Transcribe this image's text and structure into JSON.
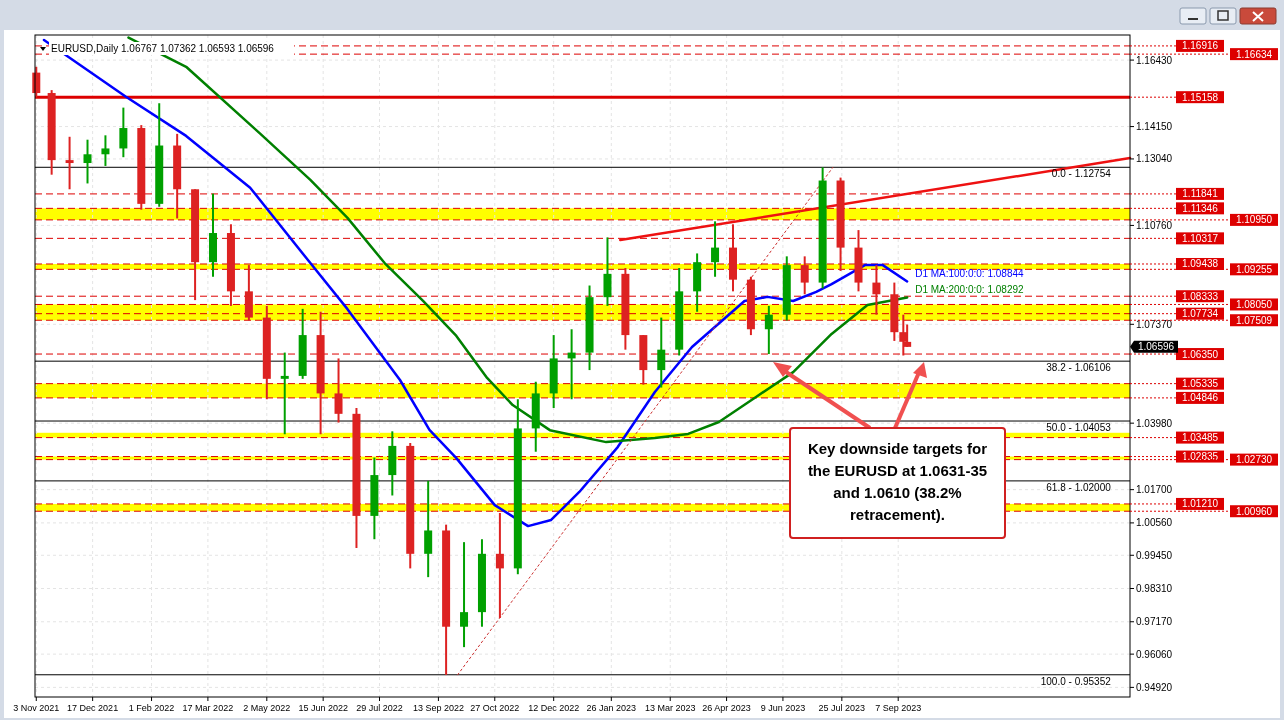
{
  "chart_data": {
    "type": "candlestick",
    "title": "EURUSD,Daily  1.06767 1.07362 1.06593 1.06596",
    "xlim": [
      "2021-11-02",
      "2024-03-06"
    ],
    "xticks": [
      {
        "value": "2021-11-03",
        "label": "3 Nov 2021"
      },
      {
        "value": "2021-12-17",
        "label": "17 Dec 2021"
      },
      {
        "value": "2022-02-01",
        "label": "1 Feb 2022"
      },
      {
        "value": "2022-03-17",
        "label": "17 Mar 2022"
      },
      {
        "value": "2022-05-02",
        "label": "2 May 2022"
      },
      {
        "value": "2022-06-15",
        "label": "15 Jun 2022"
      },
      {
        "value": "2022-07-29",
        "label": "29 Jul 2022"
      },
      {
        "value": "2022-09-13",
        "label": "13 Sep 2022"
      },
      {
        "value": "2022-10-27",
        "label": "27 Oct 2022"
      },
      {
        "value": "2022-12-12",
        "label": "12 Dec 2022"
      },
      {
        "value": "2023-01-26",
        "label": "26 Jan 2023"
      },
      {
        "value": "2023-03-13",
        "label": "13 Mar 2023"
      },
      {
        "value": "2023-04-26",
        "label": "26 Apr 2023"
      },
      {
        "value": "2023-06-09",
        "label": "9 Jun 2023"
      },
      {
        "value": "2023-07-25",
        "label": "25 Jul 2023"
      },
      {
        "value": "2023-09-07",
        "label": "7 Sep 2023"
      }
    ],
    "ylim": [
      0.9459,
      1.1729
    ],
    "yticks": [
      {
        "value": 1.1643,
        "label": "1.16430"
      },
      {
        "value": 1.1415,
        "label": "1.14150"
      },
      {
        "value": 1.1304,
        "label": "1.13040"
      },
      {
        "value": 1.1076,
        "label": "1.10760"
      },
      {
        "value": 1.0737,
        "label": "1.07370"
      },
      {
        "value": 1.0398,
        "label": "1.03980"
      },
      {
        "value": 1.017,
        "label": "1.01700"
      },
      {
        "value": 1.0056,
        "label": "1.00560"
      },
      {
        "value": 0.9945,
        "label": "0.99450"
      },
      {
        "value": 0.9831,
        "label": "0.98310"
      },
      {
        "value": 0.9717,
        "label": "0.97170"
      },
      {
        "value": 0.9606,
        "label": "0.96060"
      },
      {
        "value": 0.9492,
        "label": "0.94920"
      }
    ],
    "grid": true,
    "x": [
      "2021-11-03",
      "2021-11-15",
      "2021-11-29",
      "2021-12-13",
      "2021-12-27",
      "2022-01-10",
      "2022-01-24",
      "2022-02-07",
      "2022-02-21",
      "2022-03-07",
      "2022-03-21",
      "2022-04-04",
      "2022-04-18",
      "2022-05-02",
      "2022-05-16",
      "2022-05-30",
      "2022-06-13",
      "2022-06-27",
      "2022-07-11",
      "2022-07-25",
      "2022-08-08",
      "2022-08-22",
      "2022-09-05",
      "2022-09-19",
      "2022-10-03",
      "2022-10-17",
      "2022-10-31",
      "2022-11-14",
      "2022-11-28",
      "2022-12-12",
      "2022-12-26",
      "2023-01-09",
      "2023-01-23",
      "2023-02-06",
      "2023-02-20",
      "2023-03-06",
      "2023-03-20",
      "2023-04-03",
      "2023-04-17",
      "2023-05-01",
      "2023-05-15",
      "2023-05-29",
      "2023-06-12",
      "2023-06-26",
      "2023-07-10",
      "2023-07-24",
      "2023-08-07",
      "2023-08-21",
      "2023-09-04",
      "2023-09-11",
      "2023-09-14"
    ],
    "ohlc": [
      [
        1.16,
        1.162,
        1.1515,
        1.153
      ],
      [
        1.153,
        1.154,
        1.125,
        1.13
      ],
      [
        1.13,
        1.138,
        1.12,
        1.129
      ],
      [
        1.129,
        1.137,
        1.122,
        1.132
      ],
      [
        1.132,
        1.1385,
        1.128,
        1.134
      ],
      [
        1.134,
        1.148,
        1.131,
        1.141
      ],
      [
        1.141,
        1.142,
        1.113,
        1.115
      ],
      [
        1.115,
        1.1495,
        1.114,
        1.135
      ],
      [
        1.135,
        1.139,
        1.11,
        1.12
      ],
      [
        1.12,
        1.12,
        1.082,
        1.095
      ],
      [
        1.095,
        1.1185,
        1.09,
        1.105
      ],
      [
        1.105,
        1.108,
        1.08,
        1.085
      ],
      [
        1.085,
        1.094,
        1.075,
        1.076
      ],
      [
        1.076,
        1.08,
        1.048,
        1.055
      ],
      [
        1.055,
        1.064,
        1.036,
        1.056
      ],
      [
        1.056,
        1.079,
        1.055,
        1.07
      ],
      [
        1.07,
        1.078,
        1.036,
        1.05
      ],
      [
        1.05,
        1.062,
        1.04,
        1.043
      ],
      [
        1.043,
        1.045,
        0.997,
        1.008
      ],
      [
        1.008,
        1.028,
        1.0,
        1.022
      ],
      [
        1.022,
        1.037,
        1.015,
        1.032
      ],
      [
        1.032,
        1.033,
        0.99,
        0.995
      ],
      [
        0.995,
        1.02,
        0.987,
        1.003
      ],
      [
        1.003,
        1.005,
        0.9535,
        0.97
      ],
      [
        0.97,
        0.999,
        0.963,
        0.975
      ],
      [
        0.975,
        1.0,
        0.97,
        0.995
      ],
      [
        0.995,
        1.009,
        0.973,
        0.99
      ],
      [
        0.99,
        1.048,
        0.988,
        1.038
      ],
      [
        1.038,
        1.054,
        1.03,
        1.05
      ],
      [
        1.05,
        1.07,
        1.045,
        1.062
      ],
      [
        1.062,
        1.072,
        1.048,
        1.064
      ],
      [
        1.064,
        1.087,
        1.058,
        1.083
      ],
      [
        1.083,
        1.1035,
        1.08,
        1.091
      ],
      [
        1.091,
        1.093,
        1.065,
        1.07
      ],
      [
        1.07,
        1.07,
        1.053,
        1.058
      ],
      [
        1.058,
        1.076,
        1.052,
        1.065
      ],
      [
        1.065,
        1.093,
        1.063,
        1.085
      ],
      [
        1.085,
        1.098,
        1.078,
        1.095
      ],
      [
        1.095,
        1.109,
        1.09,
        1.1
      ],
      [
        1.1,
        1.108,
        1.085,
        1.089
      ],
      [
        1.089,
        1.09,
        1.07,
        1.072
      ],
      [
        1.072,
        1.08,
        1.0635,
        1.077
      ],
      [
        1.077,
        1.097,
        1.075,
        1.094
      ],
      [
        1.094,
        1.097,
        1.084,
        1.088
      ],
      [
        1.088,
        1.1275,
        1.086,
        1.123
      ],
      [
        1.123,
        1.124,
        1.092,
        1.1
      ],
      [
        1.1,
        1.106,
        1.085,
        1.088
      ],
      [
        1.088,
        1.094,
        1.077,
        1.084
      ],
      [
        1.084,
        1.088,
        1.068,
        1.071
      ],
      [
        1.071,
        1.077,
        1.063,
        1.0677
      ],
      [
        1.06767,
        1.07362,
        1.06593,
        1.06596
      ]
    ],
    "series": [
      {
        "name": "D1 MA:100:0:0: 1.08844",
        "color": "#0000ff",
        "type": "line",
        "x": [
          "2021-11-09",
          "2022-01-12",
          "2022-02-28",
          "2022-04-19",
          "2022-06-05",
          "2022-07-04",
          "2022-08-14",
          "2022-09-06",
          "2022-09-27",
          "2022-10-27",
          "2022-11-22",
          "2022-12-10",
          "2023-01-01",
          "2023-01-31",
          "2023-03-01",
          "2023-03-30",
          "2023-05-10",
          "2023-05-28",
          "2023-06-17",
          "2023-07-05",
          "2023-07-17",
          "2023-08-12",
          "2023-08-26",
          "2023-09-14"
        ],
        "values": [
          1.1712,
          1.1517,
          1.1383,
          1.1205,
          1.0947,
          1.0789,
          1.0546,
          1.0375,
          1.0278,
          1.0117,
          1.0045,
          1.0066,
          1.0162,
          1.0316,
          1.0505,
          1.0659,
          1.0817,
          1.0831,
          1.0817,
          1.0848,
          1.0875,
          1.094,
          1.094,
          1.0884
        ]
      },
      {
        "name": "D1 MA:200:0:0: 1.08292",
        "color": "#008000",
        "type": "line",
        "x": [
          "2022-01-14",
          "2022-02-28",
          "2022-04-27",
          "2022-06-05",
          "2022-07-04",
          "2022-08-02",
          "2022-09-01",
          "2022-09-27",
          "2022-10-21",
          "2022-11-10",
          "2022-12-09",
          "2023-01-22",
          "2023-03-01",
          "2023-03-27",
          "2023-04-20",
          "2023-05-19",
          "2023-06-17",
          "2023-07-17",
          "2023-08-14",
          "2023-09-14"
        ],
        "values": [
          1.172,
          1.162,
          1.139,
          1.1232,
          1.1102,
          1.0947,
          1.0817,
          1.0697,
          1.0553,
          1.046,
          1.0374,
          1.0333,
          1.0347,
          1.0361,
          1.0402,
          1.0488,
          1.0573,
          1.0704,
          1.0803,
          1.0829
        ]
      },
      {
        "color": "#ee1111",
        "type": "line",
        "x": [
          "2023-02-02",
          "2024-03-06"
        ],
        "values": [
          1.1026,
          1.1307
        ]
      },
      {
        "color": "#cc3333",
        "type": "line",
        "line_style": "dotted",
        "x": [
          "2022-09-28",
          "2023-07-18"
        ],
        "values": [
          0.9535,
          1.1275
        ]
      }
    ],
    "bands": [
      {
        "axis": "y",
        "from": 1.1095,
        "to": 1.11346,
        "color": "#ffff00"
      },
      {
        "axis": "y",
        "from": 1.09255,
        "to": 1.09438,
        "color": "#ffff00"
      },
      {
        "axis": "y",
        "from": 1.07509,
        "to": 1.0805,
        "color": "#ffff00"
      },
      {
        "axis": "y",
        "from": 1.04846,
        "to": 1.05335,
        "color": "#ffff00"
      },
      {
        "axis": "y",
        "from": 1.03485,
        "to": 1.0365,
        "color": "#ffff00"
      },
      {
        "axis": "y",
        "from": 1.0273,
        "to": 1.02835,
        "color": "#ffff00"
      },
      {
        "axis": "y",
        "from": 1.0096,
        "to": 1.0121,
        "color": "#ffff00"
      }
    ],
    "ref_lines": [
      {
        "axis": "y",
        "value": 1.16916,
        "label": "1.16916",
        "color": "#dd0000",
        "line_style": "dashed"
      },
      {
        "axis": "y",
        "value": 1.16634,
        "label": "1.16634",
        "color": "#dd0000",
        "line_style": "dashed"
      },
      {
        "axis": "y",
        "value": 1.15158,
        "label": "1.15158",
        "color": "#dd0000",
        "line_style": "solid"
      },
      {
        "axis": "y",
        "value": 1.11841,
        "label": "1.11841",
        "color": "#dd0000",
        "line_style": "dashed"
      },
      {
        "axis": "y",
        "value": 1.11346,
        "label": "1.11346",
        "color": "#dd0000",
        "line_style": "dashed"
      },
      {
        "axis": "y",
        "value": 1.1095,
        "label": "1.10950",
        "color": "#dd0000",
        "line_style": "dashed"
      },
      {
        "axis": "y",
        "value": 1.10317,
        "label": "1.10317",
        "color": "#dd0000",
        "line_style": "dashed"
      },
      {
        "axis": "y",
        "value": 1.09438,
        "label": "1.09438",
        "color": "#dd0000",
        "line_style": "dashed"
      },
      {
        "axis": "y",
        "value": 1.09255,
        "label": "1.09255",
        "color": "#dd0000",
        "line_style": "dashed"
      },
      {
        "axis": "y",
        "value": 1.08333,
        "label": "1.08333",
        "color": "#dd0000",
        "line_style": "dashed"
      },
      {
        "axis": "y",
        "value": 1.0805,
        "label": "1.08050",
        "color": "#dd0000",
        "line_style": "dashed"
      },
      {
        "axis": "y",
        "value": 1.07734,
        "label": "1.07734",
        "color": "#dd0000",
        "line_style": "dashed"
      },
      {
        "axis": "y",
        "value": 1.07509,
        "label": "1.07509",
        "color": "#dd0000",
        "line_style": "dashed"
      },
      {
        "axis": "y",
        "value": 1.0635,
        "label": "1.06350",
        "color": "#dd0000",
        "line_style": "dashed"
      },
      {
        "axis": "y",
        "value": 1.05335,
        "label": "1.05335",
        "color": "#dd0000",
        "line_style": "dashed"
      },
      {
        "axis": "y",
        "value": 1.04846,
        "label": "1.04846",
        "color": "#dd0000",
        "line_style": "dashed"
      },
      {
        "axis": "y",
        "value": 1.03485,
        "label": "1.03485",
        "color": "#dd0000",
        "line_style": "dashed"
      },
      {
        "axis": "y",
        "value": 1.02835,
        "label": "1.02835",
        "color": "#dd0000",
        "line_style": "dashed"
      },
      {
        "axis": "y",
        "value": 1.0273,
        "label": "1.02730",
        "color": "#dd0000",
        "line_style": "dashed"
      },
      {
        "axis": "y",
        "value": 1.0121,
        "label": "1.01210",
        "color": "#dd0000",
        "line_style": "dashed"
      },
      {
        "axis": "y",
        "value": 1.0096,
        "label": "1.00960",
        "color": "#dd0000",
        "line_style": "dashed"
      },
      {
        "axis": "y",
        "value": 1.12754,
        "color": "#000000",
        "line_style": "solid"
      },
      {
        "axis": "y",
        "value": 1.06106,
        "color": "#000000",
        "line_style": "solid"
      },
      {
        "axis": "y",
        "value": 1.04053,
        "color": "#000000",
        "line_style": "solid"
      },
      {
        "axis": "y",
        "value": 1.02,
        "color": "#000000",
        "line_style": "solid"
      },
      {
        "axis": "y",
        "value": 0.95352,
        "color": "#000000",
        "line_style": "solid"
      }
    ],
    "annotations": [
      "Key downside targets for the EURUSD at 1.0631-35 and 1.0610 (38.2% retracement).",
      "1.06596",
      {
        "text": "0.0 - 1.12754",
        "x": "2024-02-20",
        "y": 1.12754
      },
      {
        "text": "38.2 - 1.06106",
        "x": "2024-02-20",
        "y": 1.06106
      },
      {
        "text": "50.0 - 1.04053",
        "x": "2024-02-20",
        "y": 1.04053
      },
      {
        "text": "61.8 - 1.02000",
        "x": "2024-02-20",
        "y": 1.02
      },
      {
        "text": "100.0 - 0.95352",
        "x": "2024-02-20",
        "y": 0.95352
      }
    ]
  }
}
